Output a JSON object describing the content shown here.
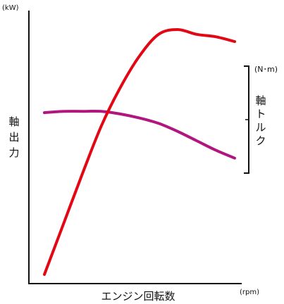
{
  "chart_data": {
    "type": "line",
    "title": "",
    "xlabel": "エンジン回転数",
    "x_unit": "(rpm)",
    "ylabel": "軸出力",
    "y_unit": "(kW)",
    "y2label_chars": [
      "軸",
      "ト",
      "ル",
      "ク"
    ],
    "y2_unit": "(N･m)",
    "x": [
      0,
      0.1,
      0.2,
      0.3,
      0.4,
      0.5,
      0.6,
      0.7,
      0.8,
      0.9,
      1.0
    ],
    "series": [
      {
        "axis": "left",
        "color": "#e30613",
        "values": [
          0.0,
          0.21,
          0.42,
          0.62,
          0.78,
          0.91,
          1.0,
          1.02,
          1.0,
          0.99,
          0.97
        ]
      },
      {
        "axis": "right",
        "color": "#b0167e",
        "values": [
          0.71,
          0.72,
          0.72,
          0.72,
          0.7,
          0.67,
          0.63,
          0.57,
          0.5,
          0.43,
          0.37
        ]
      }
    ],
    "grid": false,
    "x_ticks": false,
    "y_ticks": false
  }
}
